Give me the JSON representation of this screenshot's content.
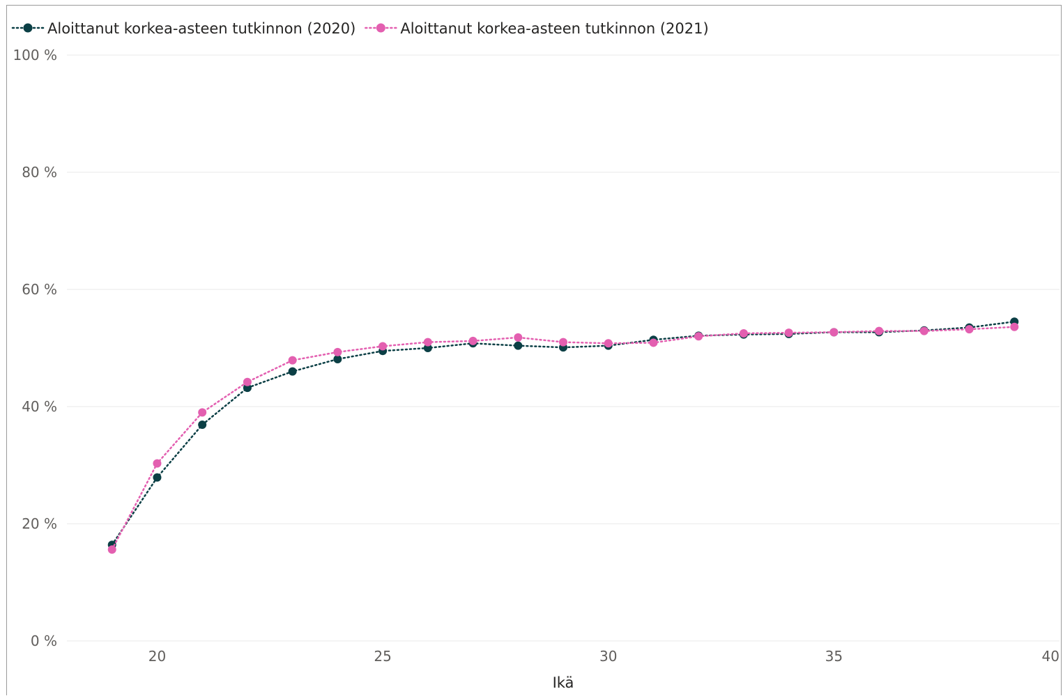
{
  "chart_data": {
    "type": "line",
    "title": "",
    "xlabel": "Ikä",
    "ylabel": "",
    "xlim": [
      18,
      40
    ],
    "ylim": [
      0,
      100
    ],
    "x_ticks": [
      20,
      25,
      30,
      35,
      40
    ],
    "x_tick_labels": [
      "20",
      "25",
      "30",
      "35",
      "40"
    ],
    "y_ticks": [
      0,
      20,
      40,
      60,
      80,
      100
    ],
    "y_tick_labels": [
      "0 %",
      "20 %",
      "40 %",
      "60 %",
      "80 %",
      "100 %"
    ],
    "grid": "horizontal",
    "legend_position": "top-left",
    "x": [
      19,
      20,
      21,
      22,
      23,
      24,
      25,
      26,
      27,
      28,
      29,
      30,
      31,
      32,
      33,
      34,
      35,
      36,
      37,
      38,
      39
    ],
    "series": [
      {
        "name": "Aloittanut korkea-asteen tutkinnon (2020)",
        "color": "#0b3f45",
        "line_style": "dotted",
        "marker": "circle",
        "values": [
          16.4,
          27.9,
          36.9,
          43.2,
          46.0,
          48.1,
          49.5,
          50.0,
          50.8,
          50.4,
          50.1,
          50.4,
          51.4,
          52.1,
          52.3,
          52.4,
          52.7,
          52.7,
          53.0,
          53.5,
          54.5
        ]
      },
      {
        "name": "Aloittanut korkea-asteen tutkinnon (2021)",
        "color": "#e35fb0",
        "line_style": "dotted",
        "marker": "circle",
        "values": [
          15.6,
          30.3,
          39.0,
          44.2,
          47.9,
          49.3,
          50.3,
          51.0,
          51.2,
          51.8,
          51.0,
          50.8,
          50.9,
          52.0,
          52.5,
          52.6,
          52.7,
          52.9,
          52.9,
          53.2,
          53.6
        ]
      }
    ]
  }
}
